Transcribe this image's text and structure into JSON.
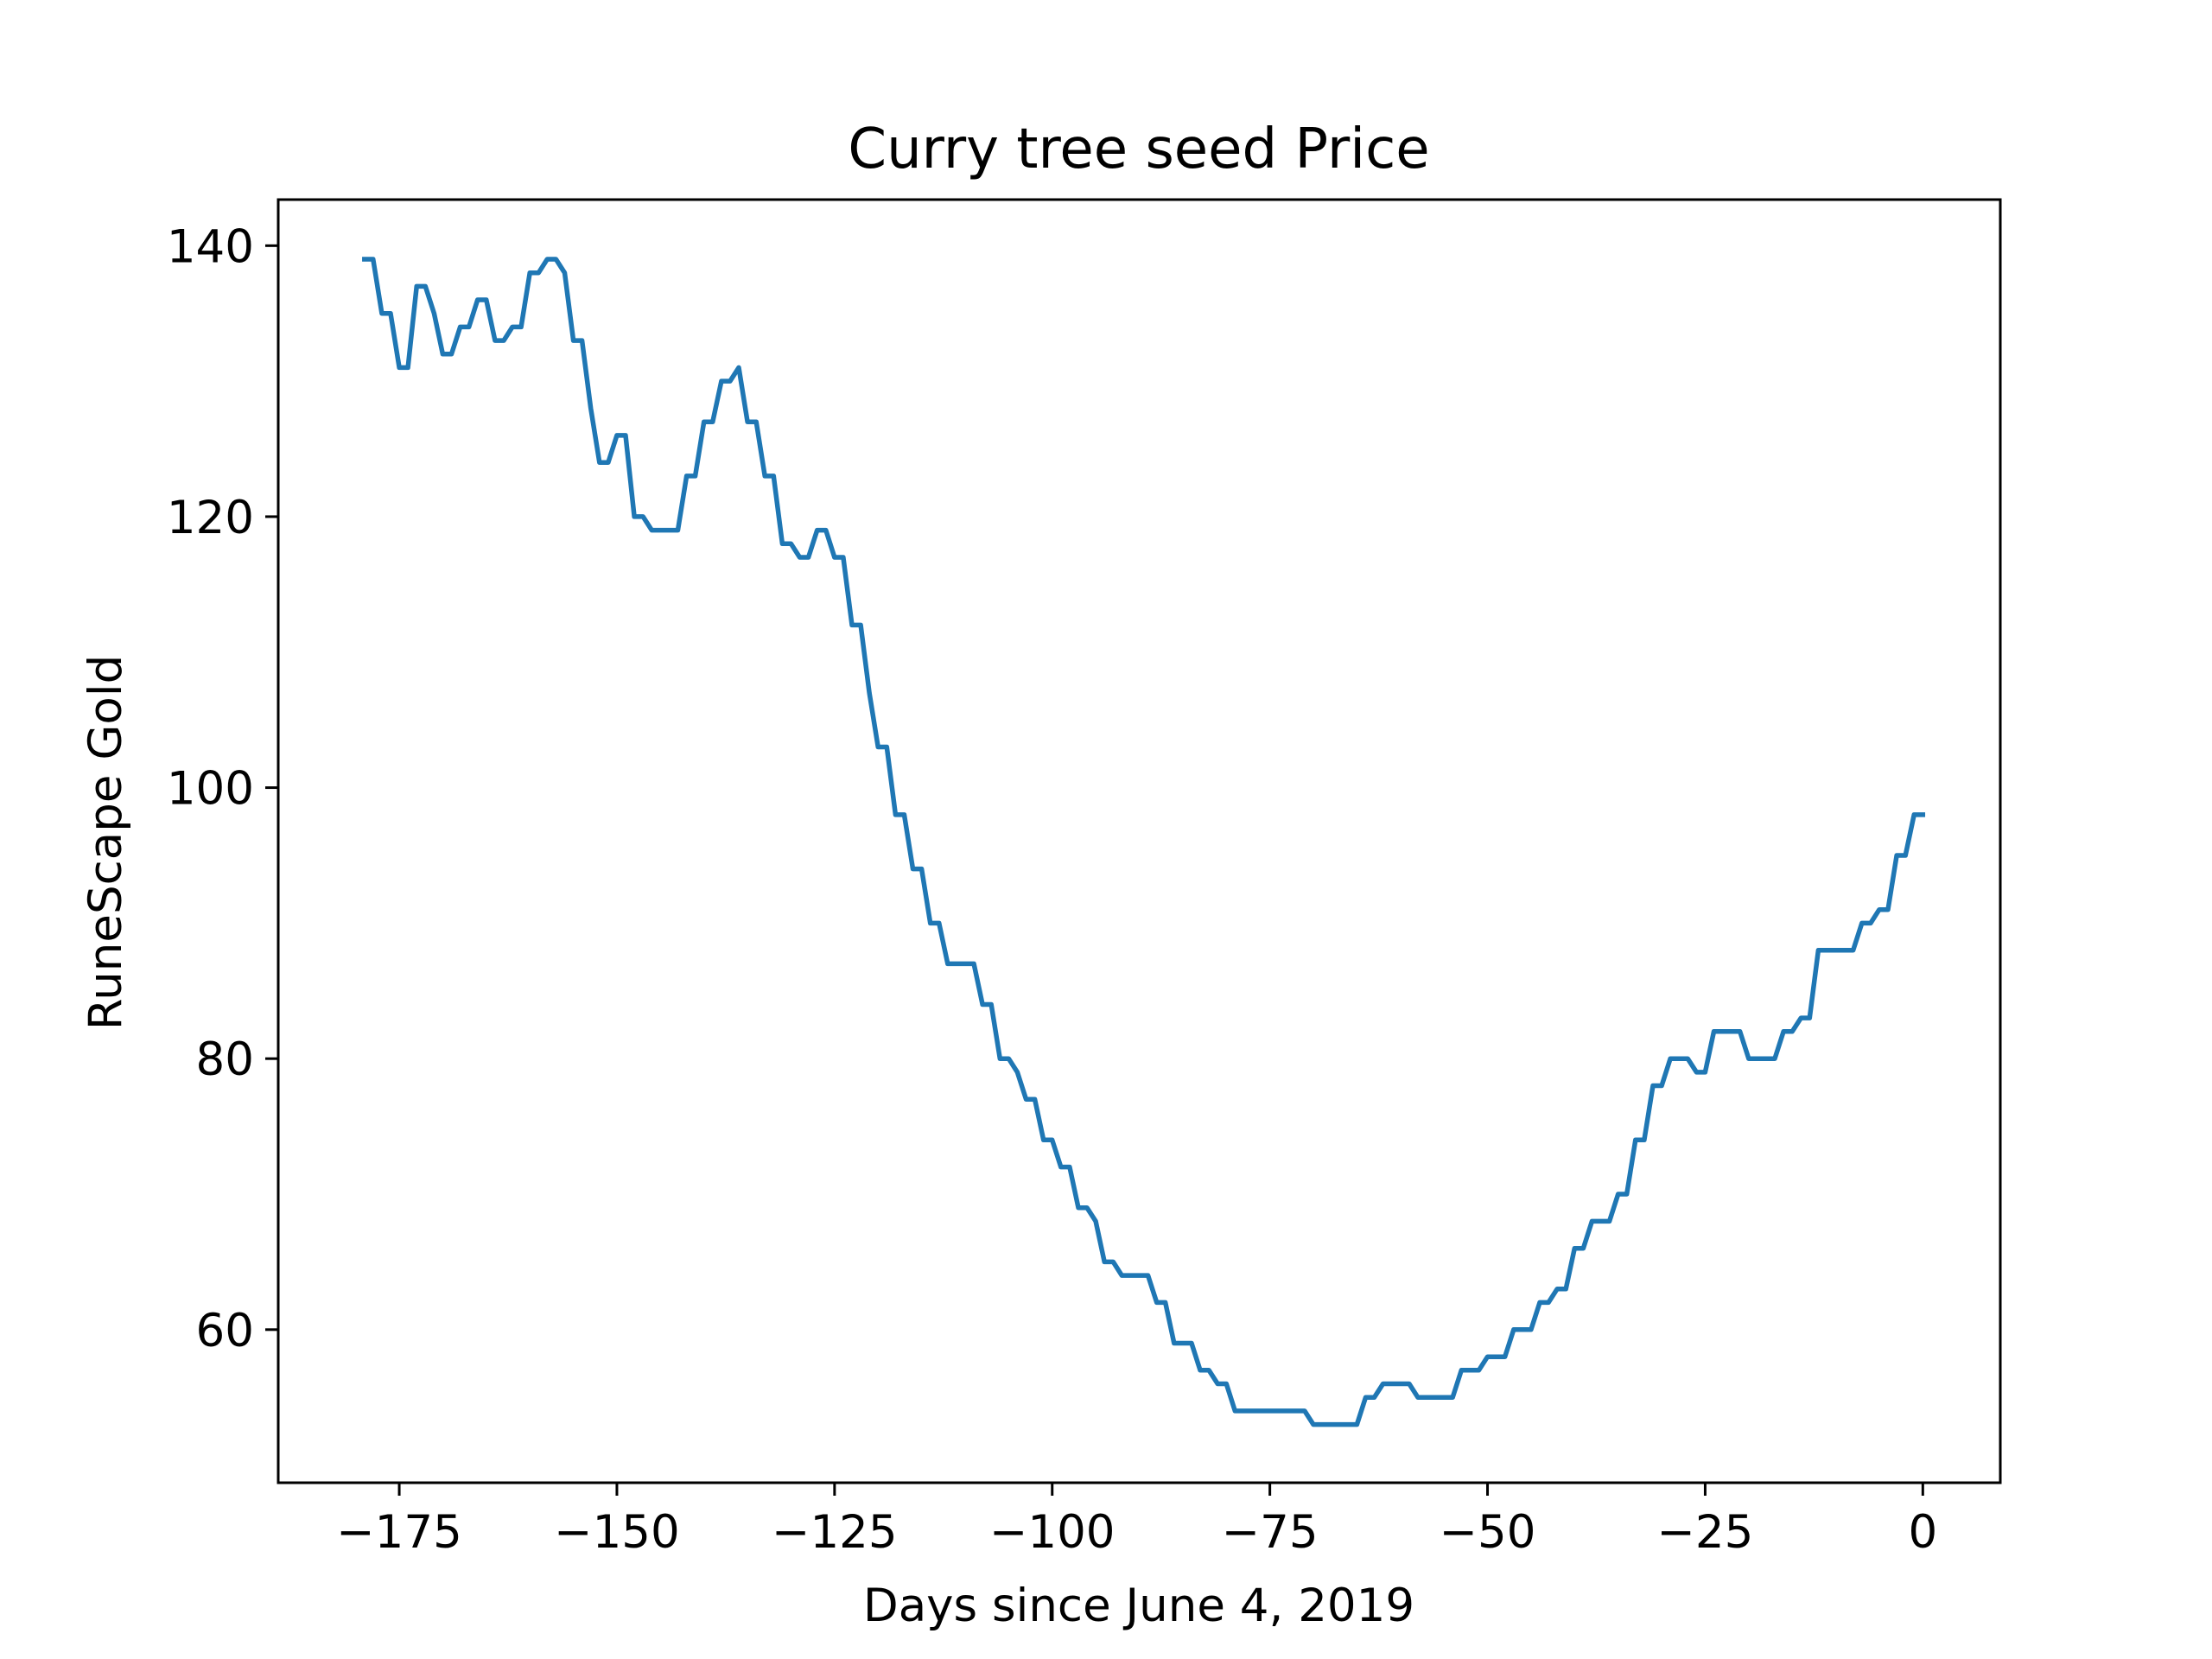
{
  "chart_data": {
    "type": "line",
    "title": "Curry tree seed Price",
    "xlabel": "Days since June 4, 2019",
    "ylabel": "RuneScape Gold",
    "xlim": [
      -188.9,
      8.9
    ],
    "ylim": [
      48.7,
      143.4
    ],
    "grid": false,
    "xticks": [
      -175,
      -150,
      -125,
      -100,
      -75,
      -50,
      -25,
      0
    ],
    "xtick_labels": [
      "−175",
      "−150",
      "−125",
      "−100",
      "−75",
      "−50",
      "−25",
      "0"
    ],
    "yticks": [
      60,
      80,
      100,
      120,
      140
    ],
    "ytick_labels": [
      "60",
      "80",
      "100",
      "120",
      "140"
    ],
    "series": [
      {
        "color": "#1f77b4",
        "points": [
          [
            -179,
            139
          ],
          [
            -178,
            139
          ],
          [
            -177,
            135
          ],
          [
            -176,
            135
          ],
          [
            -175,
            131
          ],
          [
            -174,
            131
          ],
          [
            -173,
            137
          ],
          [
            -172,
            137
          ],
          [
            -171,
            135
          ],
          [
            -170,
            132
          ],
          [
            -169,
            132
          ],
          [
            -168,
            134
          ],
          [
            -167,
            134
          ],
          [
            -166,
            136
          ],
          [
            -165,
            136
          ],
          [
            -164,
            133
          ],
          [
            -163,
            133
          ],
          [
            -162,
            134
          ],
          [
            -161,
            134
          ],
          [
            -160,
            138
          ],
          [
            -159,
            138
          ],
          [
            -158,
            139
          ],
          [
            -157,
            139
          ],
          [
            -156,
            138
          ],
          [
            -155,
            133
          ],
          [
            -154,
            133
          ],
          [
            -153,
            128
          ],
          [
            -152,
            124
          ],
          [
            -151,
            124
          ],
          [
            -150,
            126
          ],
          [
            -149,
            126
          ],
          [
            -148,
            120
          ],
          [
            -147,
            120
          ],
          [
            -146,
            119
          ],
          [
            -145,
            119
          ],
          [
            -144,
            119
          ],
          [
            -143,
            119
          ],
          [
            -142,
            123
          ],
          [
            -141,
            123
          ],
          [
            -140,
            127
          ],
          [
            -139,
            127
          ],
          [
            -138,
            130
          ],
          [
            -137,
            130
          ],
          [
            -136,
            131
          ],
          [
            -135,
            127
          ],
          [
            -134,
            127
          ],
          [
            -133,
            123
          ],
          [
            -132,
            123
          ],
          [
            -131,
            118
          ],
          [
            -130,
            118
          ],
          [
            -129,
            117
          ],
          [
            -128,
            117
          ],
          [
            -127,
            119
          ],
          [
            -126,
            119
          ],
          [
            -125,
            117
          ],
          [
            -124,
            117
          ],
          [
            -123,
            112
          ],
          [
            -122,
            112
          ],
          [
            -121,
            107
          ],
          [
            -120,
            103
          ],
          [
            -119,
            103
          ],
          [
            -118,
            98
          ],
          [
            -117,
            98
          ],
          [
            -116,
            94
          ],
          [
            -115,
            94
          ],
          [
            -114,
            90
          ],
          [
            -113,
            90
          ],
          [
            -112,
            87
          ],
          [
            -111,
            87
          ],
          [
            -110,
            87
          ],
          [
            -109,
            87
          ],
          [
            -108,
            84
          ],
          [
            -107,
            84
          ],
          [
            -106,
            80
          ],
          [
            -105,
            80
          ],
          [
            -104,
            79
          ],
          [
            -103,
            77
          ],
          [
            -102,
            77
          ],
          [
            -101,
            74
          ],
          [
            -100,
            74
          ],
          [
            -99,
            72
          ],
          [
            -98,
            72
          ],
          [
            -97,
            69
          ],
          [
            -96,
            69
          ],
          [
            -95,
            68
          ],
          [
            -94,
            65
          ],
          [
            -93,
            65
          ],
          [
            -92,
            64
          ],
          [
            -91,
            64
          ],
          [
            -90,
            64
          ],
          [
            -89,
            64
          ],
          [
            -88,
            62
          ],
          [
            -87,
            62
          ],
          [
            -86,
            59
          ],
          [
            -85,
            59
          ],
          [
            -84,
            59
          ],
          [
            -83,
            57
          ],
          [
            -82,
            57
          ],
          [
            -81,
            56
          ],
          [
            -80,
            56
          ],
          [
            -79,
            54
          ],
          [
            -78,
            54
          ],
          [
            -77,
            54
          ],
          [
            -76,
            54
          ],
          [
            -75,
            54
          ],
          [
            -74,
            54
          ],
          [
            -73,
            54
          ],
          [
            -72,
            54
          ],
          [
            -71,
            54
          ],
          [
            -70,
            53
          ],
          [
            -69,
            53
          ],
          [
            -68,
            53
          ],
          [
            -67,
            53
          ],
          [
            -66,
            53
          ],
          [
            -65,
            53
          ],
          [
            -64,
            55
          ],
          [
            -63,
            55
          ],
          [
            -62,
            56
          ],
          [
            -61,
            56
          ],
          [
            -60,
            56
          ],
          [
            -59,
            56
          ],
          [
            -58,
            55
          ],
          [
            -57,
            55
          ],
          [
            -56,
            55
          ],
          [
            -55,
            55
          ],
          [
            -54,
            55
          ],
          [
            -53,
            57
          ],
          [
            -52,
            57
          ],
          [
            -51,
            57
          ],
          [
            -50,
            58
          ],
          [
            -49,
            58
          ],
          [
            -48,
            58
          ],
          [
            -47,
            60
          ],
          [
            -46,
            60
          ],
          [
            -45,
            60
          ],
          [
            -44,
            62
          ],
          [
            -43,
            62
          ],
          [
            -42,
            63
          ],
          [
            -41,
            63
          ],
          [
            -40,
            66
          ],
          [
            -39,
            66
          ],
          [
            -38,
            68
          ],
          [
            -37,
            68
          ],
          [
            -36,
            68
          ],
          [
            -35,
            70
          ],
          [
            -34,
            70
          ],
          [
            -33,
            74
          ],
          [
            -32,
            74
          ],
          [
            -31,
            78
          ],
          [
            -30,
            78
          ],
          [
            -29,
            80
          ],
          [
            -28,
            80
          ],
          [
            -27,
            80
          ],
          [
            -26,
            79
          ],
          [
            -25,
            79
          ],
          [
            -24,
            82
          ],
          [
            -23,
            82
          ],
          [
            -22,
            82
          ],
          [
            -21,
            82
          ],
          [
            -20,
            80
          ],
          [
            -19,
            80
          ],
          [
            -18,
            80
          ],
          [
            -17,
            80
          ],
          [
            -16,
            82
          ],
          [
            -15,
            82
          ],
          [
            -14,
            83
          ],
          [
            -13,
            83
          ],
          [
            -12,
            88
          ],
          [
            -11,
            88
          ],
          [
            -10,
            88
          ],
          [
            -9,
            88
          ],
          [
            -8,
            88
          ],
          [
            -7,
            90
          ],
          [
            -6,
            90
          ],
          [
            -5,
            91
          ],
          [
            -4,
            91
          ],
          [
            -3,
            95
          ],
          [
            -2,
            95
          ],
          [
            -1,
            98
          ],
          [
            0,
            98
          ]
        ]
      }
    ]
  }
}
